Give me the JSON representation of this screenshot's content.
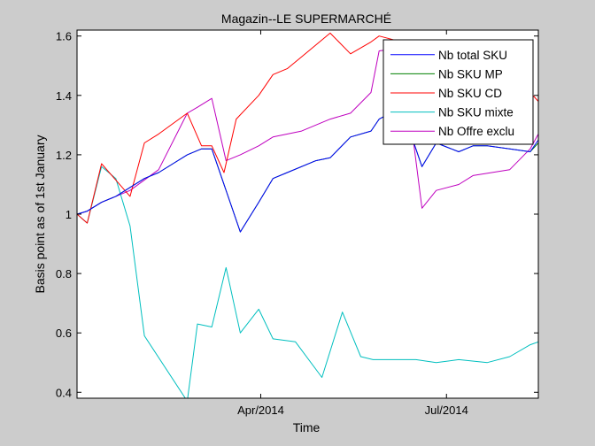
{
  "chart_data": {
    "type": "line",
    "title": "Magazin--LE SUPERMARCHÉ",
    "xlabel": "Time",
    "ylabel": "Basis point as of 1st January",
    "xlim": [
      "2014-01-01",
      "2014-08-15"
    ],
    "ylim": [
      0.38,
      1.62
    ],
    "xticks": [
      {
        "date": "2014-04-01",
        "label": "Apr/2014"
      },
      {
        "date": "2014-07-01",
        "label": "Jul/2014"
      }
    ],
    "yticks": [
      0.4,
      0.6,
      0.8,
      1,
      1.2,
      1.4,
      1.6
    ],
    "ytick_labels": [
      "0.4",
      "0.6",
      "0.8",
      "1",
      "1.2",
      "1.4",
      "1.6"
    ],
    "grid": false,
    "legend_position": "top-right",
    "series": [
      {
        "name": "Nb total SKU",
        "color": "#0000ff",
        "points": [
          [
            "2014-01-01",
            1.0
          ],
          [
            "2014-01-06",
            1.01
          ],
          [
            "2014-01-13",
            1.04
          ],
          [
            "2014-01-20",
            1.06
          ],
          [
            "2014-01-27",
            1.09
          ],
          [
            "2014-02-03",
            1.12
          ],
          [
            "2014-02-10",
            1.14
          ],
          [
            "2014-02-17",
            1.17
          ],
          [
            "2014-02-24",
            1.2
          ],
          [
            "2014-03-03",
            1.22
          ],
          [
            "2014-03-08",
            1.22
          ],
          [
            "2014-03-22",
            0.94
          ],
          [
            "2014-03-31",
            1.04
          ],
          [
            "2014-04-07",
            1.12
          ],
          [
            "2014-04-14",
            1.14
          ],
          [
            "2014-04-28",
            1.18
          ],
          [
            "2014-05-05",
            1.19
          ],
          [
            "2014-05-15",
            1.26
          ],
          [
            "2014-05-25",
            1.28
          ],
          [
            "2014-05-29",
            1.32
          ],
          [
            "2014-06-09",
            1.36
          ],
          [
            "2014-06-19",
            1.16
          ],
          [
            "2014-06-26",
            1.24
          ],
          [
            "2014-07-07",
            1.21
          ],
          [
            "2014-07-14",
            1.23
          ],
          [
            "2014-07-21",
            1.23
          ],
          [
            "2014-08-01",
            1.22
          ],
          [
            "2014-08-11",
            1.21
          ],
          [
            "2014-08-15",
            1.25
          ]
        ]
      },
      {
        "name": "Nb SKU MP",
        "color": "#008000",
        "points": [
          [
            "2014-01-01",
            1.0
          ],
          [
            "2014-01-06",
            1.01
          ],
          [
            "2014-01-13",
            1.04
          ],
          [
            "2014-01-20",
            1.06
          ],
          [
            "2014-01-27",
            1.09
          ],
          [
            "2014-02-03",
            1.12
          ],
          [
            "2014-02-10",
            1.14
          ],
          [
            "2014-02-17",
            1.17
          ],
          [
            "2014-02-24",
            1.2
          ],
          [
            "2014-03-03",
            1.22
          ],
          [
            "2014-03-08",
            1.22
          ],
          [
            "2014-03-22",
            0.94
          ],
          [
            "2014-03-31",
            1.04
          ],
          [
            "2014-04-07",
            1.12
          ],
          [
            "2014-04-14",
            1.14
          ],
          [
            "2014-04-28",
            1.18
          ],
          [
            "2014-05-05",
            1.19
          ],
          [
            "2014-05-15",
            1.26
          ],
          [
            "2014-05-25",
            1.28
          ],
          [
            "2014-05-29",
            1.32
          ],
          [
            "2014-06-09",
            1.36
          ],
          [
            "2014-06-19",
            1.16
          ],
          [
            "2014-06-26",
            1.24
          ],
          [
            "2014-07-07",
            1.21
          ],
          [
            "2014-07-14",
            1.23
          ],
          [
            "2014-07-21",
            1.23
          ],
          [
            "2014-08-01",
            1.22
          ],
          [
            "2014-08-11",
            1.21
          ],
          [
            "2014-08-15",
            1.24
          ]
        ]
      },
      {
        "name": "Nb SKU CD",
        "color": "#ff0000",
        "points": [
          [
            "2014-01-01",
            1.0
          ],
          [
            "2014-01-06",
            0.97
          ],
          [
            "2014-01-13",
            1.17
          ],
          [
            "2014-01-27",
            1.06
          ],
          [
            "2014-02-03",
            1.24
          ],
          [
            "2014-02-10",
            1.27
          ],
          [
            "2014-02-24",
            1.34
          ],
          [
            "2014-03-03",
            1.23
          ],
          [
            "2014-03-08",
            1.23
          ],
          [
            "2014-03-14",
            1.14
          ],
          [
            "2014-03-20",
            1.32
          ],
          [
            "2014-03-31",
            1.4
          ],
          [
            "2014-04-07",
            1.47
          ],
          [
            "2014-04-14",
            1.49
          ],
          [
            "2014-04-21",
            1.53
          ],
          [
            "2014-05-05",
            1.61
          ],
          [
            "2014-05-15",
            1.54
          ],
          [
            "2014-05-25",
            1.58
          ],
          [
            "2014-05-29",
            1.6
          ],
          [
            "2014-06-09",
            1.58
          ],
          [
            "2014-06-19",
            1.55
          ],
          [
            "2014-06-26",
            1.53
          ],
          [
            "2014-07-07",
            1.5
          ],
          [
            "2014-07-21",
            1.49
          ],
          [
            "2014-08-01",
            1.47
          ],
          [
            "2014-08-11",
            1.41
          ],
          [
            "2014-08-15",
            1.38
          ]
        ]
      },
      {
        "name": "Nb SKU mixte",
        "color": "#00bfbf",
        "points": [
          [
            "2014-01-01",
            1.0
          ],
          [
            "2014-01-06",
            0.97
          ],
          [
            "2014-01-13",
            1.16
          ],
          [
            "2014-01-20",
            1.12
          ],
          [
            "2014-01-27",
            0.96
          ],
          [
            "2014-02-03",
            0.59
          ],
          [
            "2014-02-24",
            0.37
          ],
          [
            "2014-03-01",
            0.63
          ],
          [
            "2014-03-08",
            0.62
          ],
          [
            "2014-03-15",
            0.82
          ],
          [
            "2014-03-22",
            0.6
          ],
          [
            "2014-03-31",
            0.68
          ],
          [
            "2014-04-07",
            0.58
          ],
          [
            "2014-04-18",
            0.57
          ],
          [
            "2014-05-01",
            0.45
          ],
          [
            "2014-05-11",
            0.67
          ],
          [
            "2014-05-20",
            0.52
          ],
          [
            "2014-05-26",
            0.51
          ],
          [
            "2014-06-16",
            0.51
          ],
          [
            "2014-06-26",
            0.5
          ],
          [
            "2014-07-07",
            0.51
          ],
          [
            "2014-07-21",
            0.5
          ],
          [
            "2014-08-01",
            0.52
          ],
          [
            "2014-08-11",
            0.56
          ],
          [
            "2014-08-15",
            0.57
          ]
        ]
      },
      {
        "name": "Nb Offre exclu",
        "color": "#bf00bf",
        "points": [
          [
            "2014-01-01",
            1.0
          ],
          [
            "2014-01-06",
            1.01
          ],
          [
            "2014-01-13",
            1.04
          ],
          [
            "2014-01-20",
            1.06
          ],
          [
            "2014-01-27",
            1.08
          ],
          [
            "2014-02-10",
            1.15
          ],
          [
            "2014-02-24",
            1.34
          ],
          [
            "2014-03-01",
            1.36
          ],
          [
            "2014-03-08",
            1.39
          ],
          [
            "2014-03-15",
            1.18
          ],
          [
            "2014-03-22",
            1.2
          ],
          [
            "2014-03-31",
            1.23
          ],
          [
            "2014-04-07",
            1.26
          ],
          [
            "2014-04-21",
            1.28
          ],
          [
            "2014-05-05",
            1.32
          ],
          [
            "2014-05-15",
            1.34
          ],
          [
            "2014-05-25",
            1.41
          ],
          [
            "2014-05-29",
            1.55
          ],
          [
            "2014-06-09",
            1.56
          ],
          [
            "2014-06-19",
            1.02
          ],
          [
            "2014-06-26",
            1.08
          ],
          [
            "2014-07-07",
            1.1
          ],
          [
            "2014-07-14",
            1.13
          ],
          [
            "2014-08-01",
            1.15
          ],
          [
            "2014-08-11",
            1.22
          ],
          [
            "2014-08-15",
            1.27
          ]
        ]
      }
    ]
  }
}
